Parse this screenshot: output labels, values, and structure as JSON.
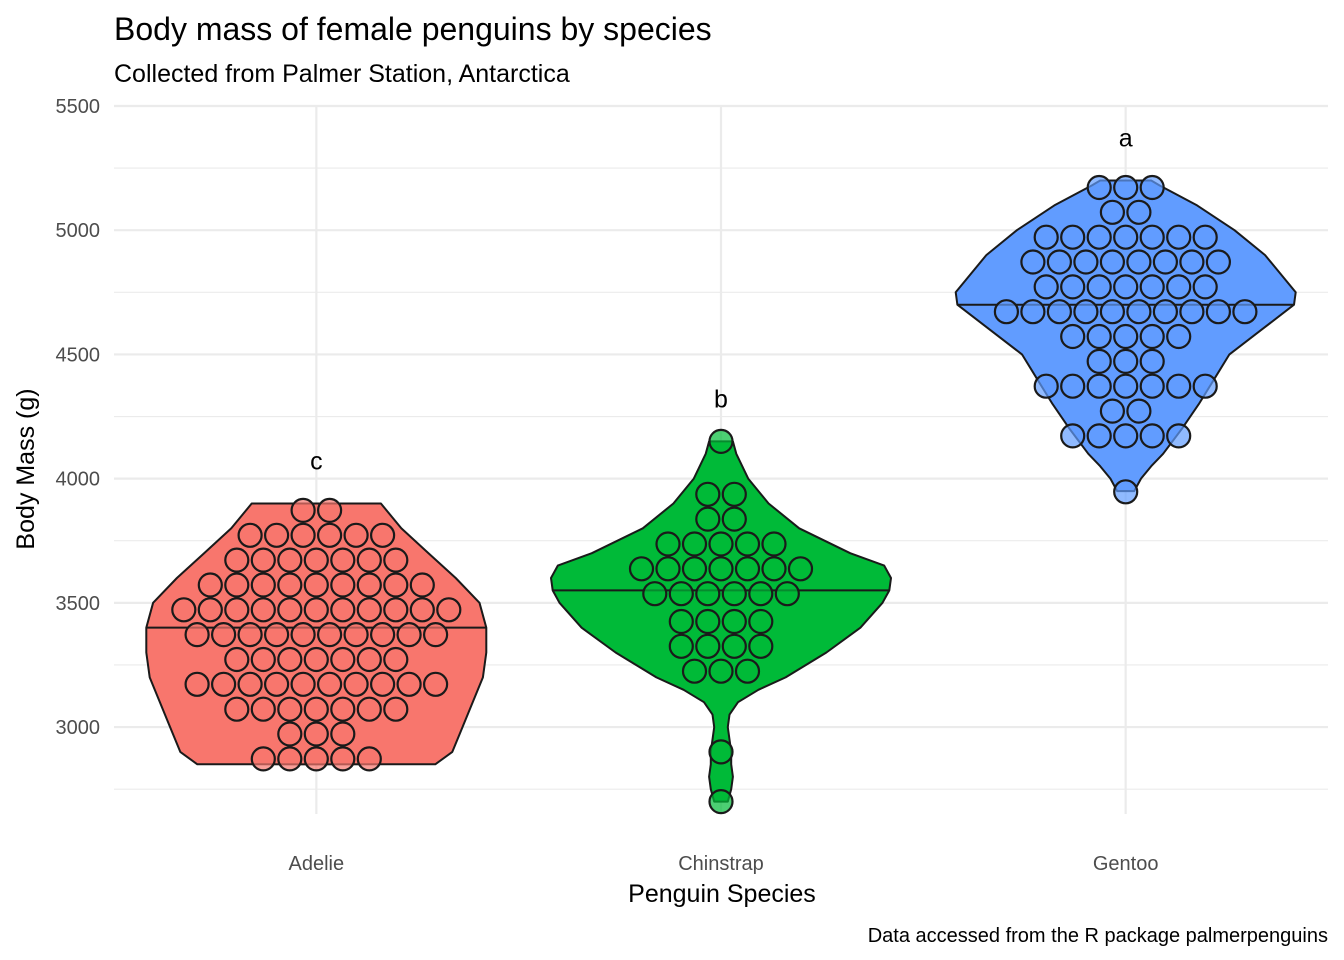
{
  "chart_data": {
    "type": "violin",
    "title": "Body mass of female penguins by species",
    "subtitle": "Collected from Palmer Station, Antarctica",
    "xlabel": "Penguin Species",
    "ylabel": "Body Mass (g)",
    "caption": "Data accessed from the R package palmerpenguins",
    "ylim": [
      2650,
      5500
    ],
    "y_ticks": [
      "3000",
      "3500",
      "4000",
      "4500",
      "5000",
      "5500"
    ],
    "grid": true,
    "legend": "none",
    "categories": [
      "Adelie",
      "Chinstrap",
      "Gentoo"
    ],
    "series": [
      {
        "category": "Adelie",
        "color": "#F8766D",
        "median": 3400,
        "significance_letter": "c",
        "violin_profile": [
          [
            2850,
            0.7
          ],
          [
            2900,
            0.8
          ],
          [
            3000,
            0.86
          ],
          [
            3100,
            0.92
          ],
          [
            3200,
            0.98
          ],
          [
            3300,
            1.0
          ],
          [
            3400,
            1.0
          ],
          [
            3500,
            0.96
          ],
          [
            3600,
            0.82
          ],
          [
            3700,
            0.66
          ],
          [
            3800,
            0.5
          ],
          [
            3900,
            0.38
          ]
        ],
        "dots": [
          {
            "y": 2872,
            "n": 5
          },
          {
            "y": 2972,
            "n": 3
          },
          {
            "y": 3072,
            "n": 7
          },
          {
            "y": 3172,
            "n": 10
          },
          {
            "y": 3272,
            "n": 7
          },
          {
            "y": 3372,
            "n": 10
          },
          {
            "y": 3472,
            "n": 11
          },
          {
            "y": 3572,
            "n": 9
          },
          {
            "y": 3672,
            "n": 7
          },
          {
            "y": 3772,
            "n": 6
          },
          {
            "y": 3872,
            "n": 2
          }
        ]
      },
      {
        "category": "Chinstrap",
        "color": "#00BA38",
        "median": 3550,
        "significance_letter": "b",
        "violin_profile": [
          [
            2700,
            0.04
          ],
          [
            2750,
            0.06
          ],
          [
            2800,
            0.07
          ],
          [
            2850,
            0.06
          ],
          [
            2900,
            0.06
          ],
          [
            2950,
            0.05
          ],
          [
            3000,
            0.04
          ],
          [
            3050,
            0.05
          ],
          [
            3100,
            0.1
          ],
          [
            3150,
            0.22
          ],
          [
            3200,
            0.38
          ],
          [
            3300,
            0.62
          ],
          [
            3400,
            0.82
          ],
          [
            3500,
            0.95
          ],
          [
            3550,
            0.99
          ],
          [
            3600,
            1.0
          ],
          [
            3650,
            0.96
          ],
          [
            3700,
            0.76
          ],
          [
            3800,
            0.46
          ],
          [
            3900,
            0.28
          ],
          [
            4000,
            0.16
          ],
          [
            4100,
            0.09
          ],
          [
            4150,
            0.07
          ]
        ],
        "dots": [
          {
            "y": 2700,
            "n": 1
          },
          {
            "y": 2900,
            "n": 1
          },
          {
            "y": 3225,
            "n": 3
          },
          {
            "y": 3325,
            "n": 4
          },
          {
            "y": 3425,
            "n": 4
          },
          {
            "y": 3537,
            "n": 6
          },
          {
            "y": 3637,
            "n": 7
          },
          {
            "y": 3737,
            "n": 5
          },
          {
            "y": 3837,
            "n": 2
          },
          {
            "y": 3937,
            "n": 2
          },
          {
            "y": 4150,
            "n": 1
          }
        ]
      },
      {
        "category": "Gentoo",
        "color": "#619CFF",
        "median": 4700,
        "significance_letter": "a",
        "violin_profile": [
          [
            3950,
            0.05
          ],
          [
            4000,
            0.09
          ],
          [
            4050,
            0.15
          ],
          [
            4100,
            0.22
          ],
          [
            4200,
            0.33
          ],
          [
            4300,
            0.43
          ],
          [
            4400,
            0.52
          ],
          [
            4500,
            0.61
          ],
          [
            4600,
            0.8
          ],
          [
            4700,
            0.99
          ],
          [
            4750,
            1.0
          ],
          [
            4800,
            0.94
          ],
          [
            4900,
            0.82
          ],
          [
            5000,
            0.64
          ],
          [
            5100,
            0.42
          ],
          [
            5180,
            0.2
          ],
          [
            5200,
            0.15
          ]
        ],
        "dots": [
          {
            "y": 3947,
            "n": 1
          },
          {
            "y": 4172,
            "n": 5
          },
          {
            "y": 4272,
            "n": 2
          },
          {
            "y": 4372,
            "n": 7
          },
          {
            "y": 4472,
            "n": 3
          },
          {
            "y": 4572,
            "n": 5
          },
          {
            "y": 4672,
            "n": 10
          },
          {
            "y": 4772,
            "n": 7
          },
          {
            "y": 4872,
            "n": 8
          },
          {
            "y": 4972,
            "n": 7
          },
          {
            "y": 5072,
            "n": 2
          },
          {
            "y": 5172,
            "n": 3
          }
        ]
      }
    ]
  }
}
